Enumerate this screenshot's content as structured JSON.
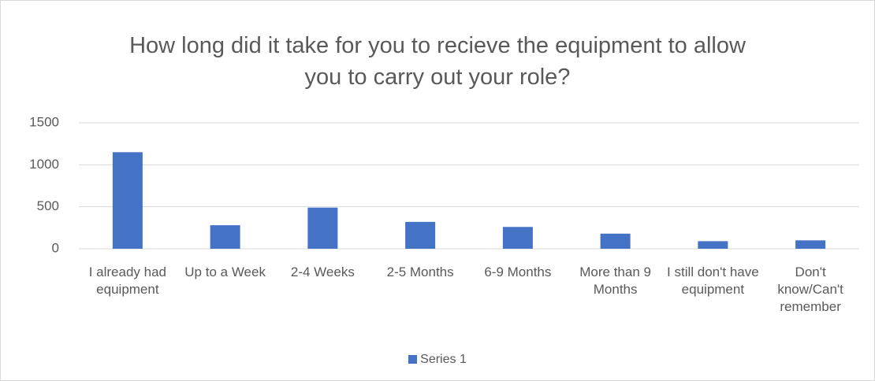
{
  "chart_data": {
    "type": "bar",
    "title": "How long did it take for you to recieve the equipment to allow you to carry out your role?",
    "categories": [
      "I already had equipment",
      "Up to a Week",
      "2-4 Weeks",
      "2-5 Months",
      "6-9 Months",
      "More than 9 Months",
      "I still don't have equipment",
      "Don't know/Can't remember"
    ],
    "series": [
      {
        "name": "Series 1",
        "color": "#4472c4",
        "values": [
          1150,
          280,
          490,
          320,
          260,
          180,
          90,
          100
        ]
      }
    ],
    "ylim": [
      0,
      1500
    ],
    "yticks": [
      0,
      500,
      1000,
      1500
    ],
    "grid": true,
    "legend": "bottom"
  }
}
